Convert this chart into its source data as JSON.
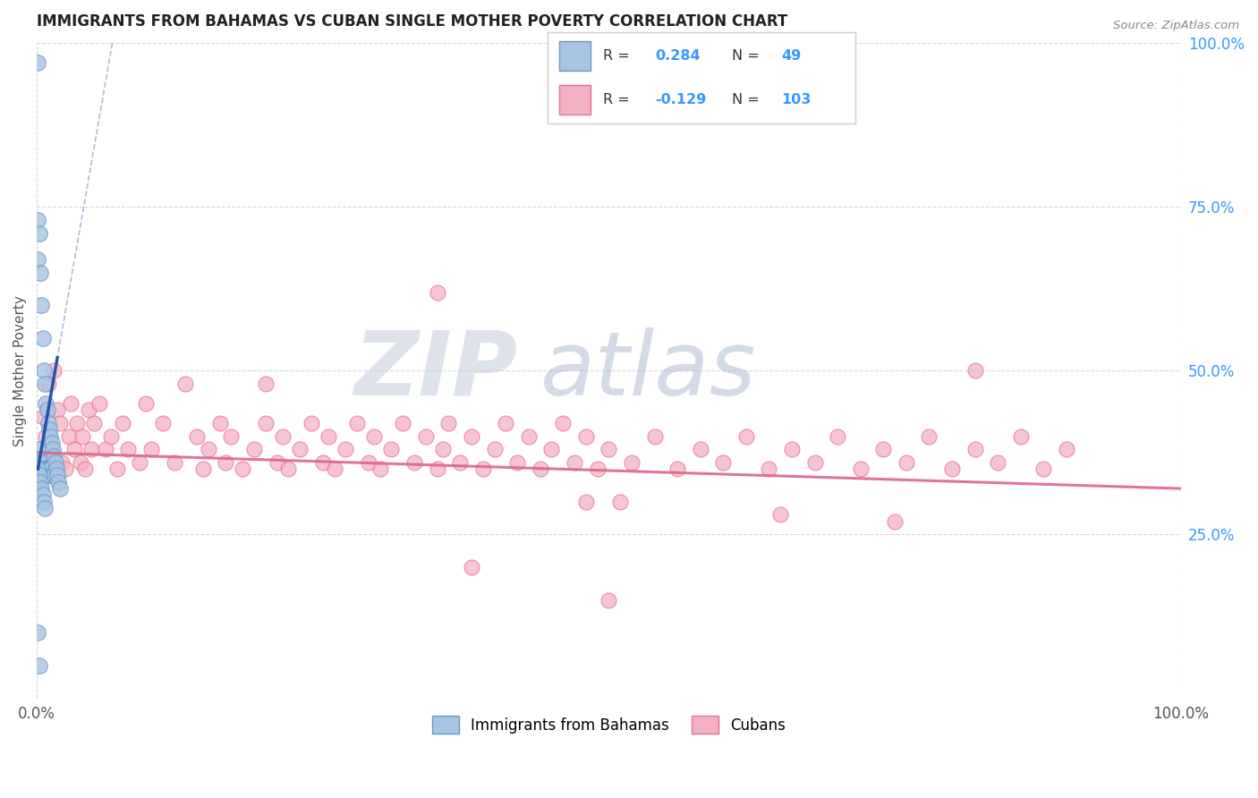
{
  "title": "IMMIGRANTS FROM BAHAMAS VS CUBAN SINGLE MOTHER POVERTY CORRELATION CHART",
  "source": "Source: ZipAtlas.com",
  "ylabel": "Single Mother Poverty",
  "xlim": [
    0.0,
    1.0
  ],
  "ylim": [
    0.0,
    1.0
  ],
  "bahamas_R": 0.284,
  "bahamas_N": 49,
  "cubans_R": -0.129,
  "cubans_N": 103,
  "legend_labels": [
    "Immigrants from Bahamas",
    "Cubans"
  ],
  "bahamas_color": "#a8c4e0",
  "bahamas_edge_color": "#6699cc",
  "cubans_color": "#f4b0c4",
  "cubans_edge_color": "#e87090",
  "bahamas_line_color": "#2255aa",
  "bahamas_dash_color": "#99aacc",
  "cubans_line_color": "#dd6688",
  "grid_color": "#cccccc",
  "tick_color_blue": "#3399ff",
  "title_color": "#222222",
  "source_color": "#888888",
  "ylabel_color": "#555555",
  "watermark_zip_color": "#c8d0dc",
  "watermark_atlas_color": "#aab8d0",
  "legend_border_color": "#cccccc",
  "legend_text_color": "#333333",
  "legend_value_color": "#3399ff",
  "bahamas_x": [
    0.001,
    0.001,
    0.001,
    0.001,
    0.002,
    0.002,
    0.002,
    0.003,
    0.003,
    0.003,
    0.004,
    0.004,
    0.004,
    0.005,
    0.005,
    0.005,
    0.006,
    0.006,
    0.007,
    0.007,
    0.008,
    0.008,
    0.009,
    0.009,
    0.01,
    0.01,
    0.011,
    0.011,
    0.012,
    0.012,
    0.013,
    0.013,
    0.014,
    0.015,
    0.015,
    0.016,
    0.017,
    0.018,
    0.019,
    0.02,
    0.001,
    0.002,
    0.003,
    0.004,
    0.005,
    0.006,
    0.007,
    0.001,
    0.002
  ],
  "bahamas_y": [
    0.97,
    0.73,
    0.67,
    0.38,
    0.71,
    0.36,
    0.35,
    0.65,
    0.36,
    0.34,
    0.6,
    0.36,
    0.34,
    0.55,
    0.36,
    0.34,
    0.5,
    0.35,
    0.48,
    0.35,
    0.45,
    0.35,
    0.44,
    0.35,
    0.42,
    0.35,
    0.41,
    0.34,
    0.4,
    0.35,
    0.39,
    0.34,
    0.38,
    0.37,
    0.34,
    0.36,
    0.35,
    0.34,
    0.33,
    0.32,
    0.35,
    0.34,
    0.33,
    0.32,
    0.31,
    0.3,
    0.29,
    0.1,
    0.05
  ],
  "cubans_x": [
    0.005,
    0.008,
    0.01,
    0.012,
    0.015,
    0.018,
    0.02,
    0.022,
    0.025,
    0.028,
    0.03,
    0.033,
    0.035,
    0.038,
    0.04,
    0.042,
    0.045,
    0.048,
    0.05,
    0.055,
    0.06,
    0.065,
    0.07,
    0.075,
    0.08,
    0.09,
    0.095,
    0.1,
    0.11,
    0.12,
    0.13,
    0.14,
    0.145,
    0.15,
    0.16,
    0.165,
    0.17,
    0.18,
    0.19,
    0.2,
    0.21,
    0.215,
    0.22,
    0.23,
    0.24,
    0.25,
    0.255,
    0.26,
    0.27,
    0.28,
    0.29,
    0.295,
    0.3,
    0.31,
    0.32,
    0.33,
    0.34,
    0.35,
    0.355,
    0.36,
    0.37,
    0.38,
    0.39,
    0.4,
    0.41,
    0.42,
    0.43,
    0.44,
    0.45,
    0.46,
    0.47,
    0.48,
    0.49,
    0.5,
    0.51,
    0.52,
    0.54,
    0.56,
    0.58,
    0.6,
    0.62,
    0.64,
    0.66,
    0.68,
    0.7,
    0.72,
    0.74,
    0.76,
    0.78,
    0.8,
    0.82,
    0.84,
    0.86,
    0.88,
    0.9,
    0.35,
    0.5,
    0.82,
    0.65,
    0.75,
    0.48,
    0.38,
    0.2
  ],
  "cubans_y": [
    0.43,
    0.4,
    0.48,
    0.38,
    0.5,
    0.44,
    0.42,
    0.36,
    0.35,
    0.4,
    0.45,
    0.38,
    0.42,
    0.36,
    0.4,
    0.35,
    0.44,
    0.38,
    0.42,
    0.45,
    0.38,
    0.4,
    0.35,
    0.42,
    0.38,
    0.36,
    0.45,
    0.38,
    0.42,
    0.36,
    0.48,
    0.4,
    0.35,
    0.38,
    0.42,
    0.36,
    0.4,
    0.35,
    0.38,
    0.42,
    0.36,
    0.4,
    0.35,
    0.38,
    0.42,
    0.36,
    0.4,
    0.35,
    0.38,
    0.42,
    0.36,
    0.4,
    0.35,
    0.38,
    0.42,
    0.36,
    0.4,
    0.35,
    0.38,
    0.42,
    0.36,
    0.4,
    0.35,
    0.38,
    0.42,
    0.36,
    0.4,
    0.35,
    0.38,
    0.42,
    0.36,
    0.4,
    0.35,
    0.38,
    0.3,
    0.36,
    0.4,
    0.35,
    0.38,
    0.36,
    0.4,
    0.35,
    0.38,
    0.36,
    0.4,
    0.35,
    0.38,
    0.36,
    0.4,
    0.35,
    0.38,
    0.36,
    0.4,
    0.35,
    0.38,
    0.62,
    0.15,
    0.5,
    0.28,
    0.27,
    0.3,
    0.2,
    0.48
  ]
}
